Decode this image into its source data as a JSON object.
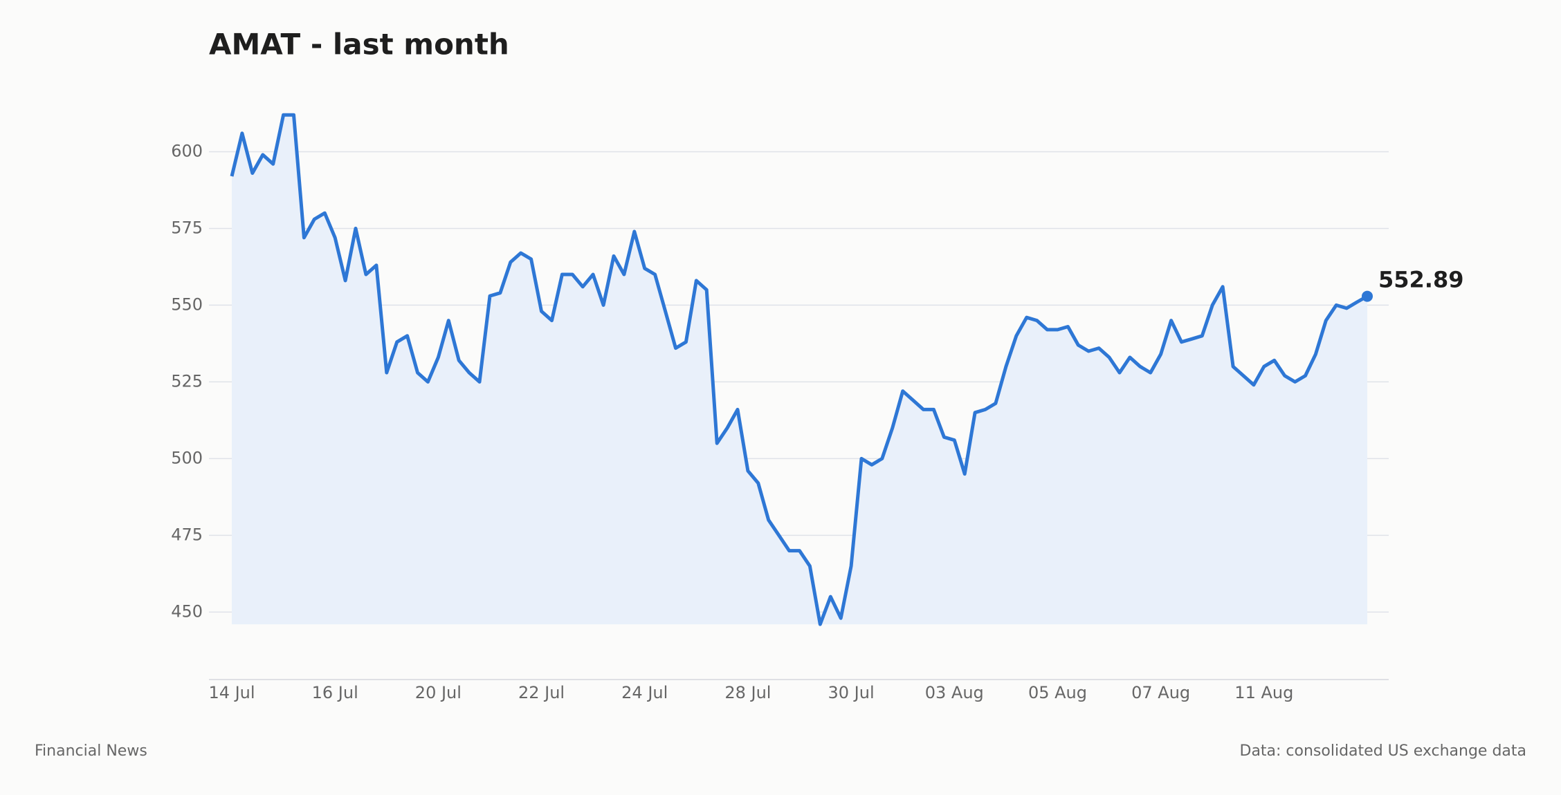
{
  "chart_data": {
    "type": "line",
    "title": "AMAT - last month",
    "categories": [
      "14 Jul",
      null,
      null,
      null,
      null,
      null,
      null,
      null,
      null,
      null,
      "16 Jul",
      null,
      null,
      null,
      null,
      null,
      null,
      null,
      null,
      null,
      "20 Jul",
      null,
      null,
      null,
      null,
      null,
      null,
      null,
      null,
      null,
      "22 Jul",
      null,
      null,
      null,
      null,
      null,
      null,
      null,
      null,
      null,
      "24 Jul",
      null,
      null,
      null,
      null,
      null,
      null,
      null,
      null,
      null,
      "28 Jul",
      null,
      null,
      null,
      null,
      null,
      null,
      null,
      null,
      null,
      "30 Jul",
      null,
      null,
      null,
      null,
      null,
      null,
      null,
      null,
      null,
      "03 Aug",
      null,
      null,
      null,
      null,
      null,
      null,
      null,
      null,
      null,
      "05 Aug",
      null,
      null,
      null,
      null,
      null,
      null,
      null,
      null,
      null,
      "07 Aug",
      null,
      null,
      null,
      null,
      null,
      null,
      null,
      null,
      null,
      "11 Aug",
      null,
      null,
      null,
      null,
      null,
      null,
      null,
      null,
      null,
      null
    ],
    "values": [
      592,
      606,
      593,
      599,
      596,
      612,
      612,
      572,
      578,
      580,
      572,
      558,
      575,
      560,
      563,
      528,
      538,
      540,
      528,
      525,
      533,
      545,
      532,
      528,
      525,
      553,
      554,
      564,
      567,
      565,
      548,
      545,
      560,
      560,
      556,
      560,
      550,
      566,
      560,
      574,
      562,
      560,
      548,
      536,
      538,
      558,
      555,
      505,
      510,
      516,
      496,
      492,
      480,
      475,
      470,
      470,
      465,
      446,
      455,
      448,
      465,
      500,
      498,
      500,
      510,
      522,
      519,
      516,
      516,
      507,
      506,
      495,
      515,
      516,
      518,
      530,
      540,
      546,
      545,
      542,
      542,
      543,
      537,
      535,
      536,
      533,
      528,
      533,
      530,
      528,
      534,
      545,
      538,
      539,
      540,
      550,
      556,
      530,
      527,
      524,
      530,
      532,
      527,
      525,
      527,
      534,
      545,
      550,
      549,
      551,
      552.89
    ],
    "value_labels": [
      null,
      null,
      null,
      null,
      null,
      null,
      null,
      null,
      null,
      null,
      null,
      null,
      null,
      null,
      null,
      null,
      null,
      null,
      null,
      null,
      null,
      null,
      null,
      null,
      null,
      null,
      null,
      null,
      null,
      null,
      null,
      null,
      null,
      null,
      null,
      null,
      null,
      null,
      null,
      null,
      null,
      null,
      null,
      null,
      null,
      null,
      null,
      null,
      null,
      null,
      null,
      null,
      null,
      null,
      null,
      null,
      null,
      null,
      null,
      null,
      null,
      null,
      null,
      null,
      null,
      null,
      null,
      null,
      null,
      null,
      null,
      null,
      null,
      null,
      null,
      null,
      null,
      null,
      null,
      null,
      null,
      null,
      null,
      null,
      null,
      null,
      null,
      null,
      null,
      null,
      null,
      null,
      null,
      null,
      null,
      null,
      null,
      null,
      null,
      null,
      null,
      null,
      null,
      null,
      null,
      null,
      null,
      null,
      null,
      null,
      "552.89"
    ],
    "color": "#2e77d5",
    "fill_color": "#e9f0fa",
    "ylim": [
      428,
      617
    ],
    "yticks": [
      450,
      475,
      500,
      525,
      550,
      575,
      600
    ],
    "grid": true,
    "source": "Financial News",
    "note": "Data: consolidated US exchange data"
  }
}
